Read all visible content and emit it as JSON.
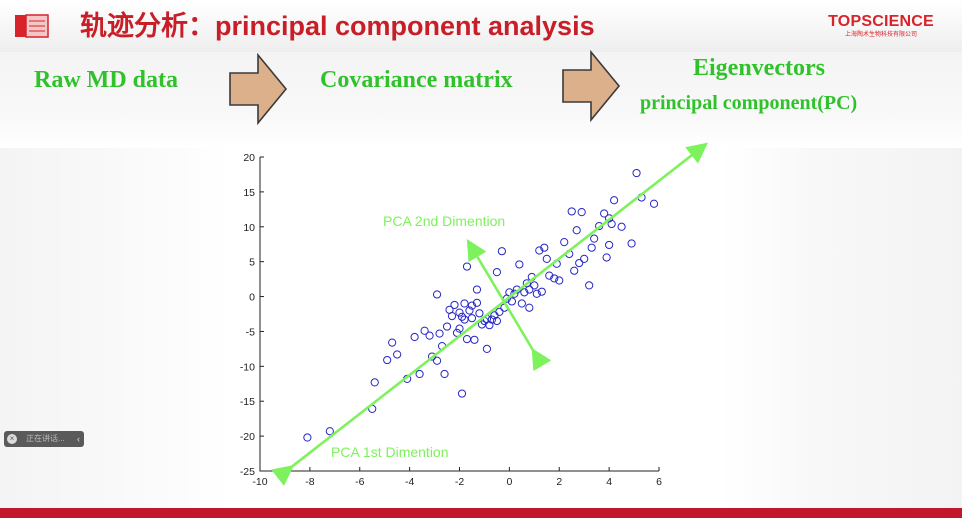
{
  "header": {
    "title": "轨迹分析：principal component analysis",
    "logo_word": "TOPSCIENCE",
    "logo_sub": "上海陶术生物科技有限公司"
  },
  "flow": {
    "step1": "Raw MD data",
    "step2": "Covariance matrix",
    "step3_line1": "Eigenvectors",
    "step3_line2": "principal component(PC)"
  },
  "minibar": {
    "text": "正在讲话..."
  },
  "colors": {
    "title_red": "#c81e28",
    "flow_green": "#2fc22a",
    "arrow_fill": "#ddb08c",
    "marker_blue": "#2626c8",
    "pca_arrow_green": "#7ef25c"
  },
  "chart_data": {
    "type": "scatter",
    "xlim": [
      -10,
      6
    ],
    "ylim": [
      -25,
      20
    ],
    "xticks": [
      -10,
      -8,
      -6,
      -4,
      -2,
      0,
      2,
      4,
      6
    ],
    "yticks": [
      -25,
      -20,
      -15,
      -10,
      -5,
      0,
      5,
      10,
      15,
      20
    ],
    "marker": "open-circle",
    "annotations": [
      {
        "text": "PCA 2nd Dimention",
        "from": [
          1,
          -8
        ],
        "to": [
          -1.6,
          7.6
        ]
      },
      {
        "text": "PCA 1st Dimention",
        "from": [
          -8.8,
          -24.6
        ],
        "to": [
          7.8,
          21.6
        ]
      }
    ],
    "points": [
      [
        -8.1,
        -20.2
      ],
      [
        -7.2,
        -19.3
      ],
      [
        -5.5,
        -16.1
      ],
      [
        -5.4,
        -12.3
      ],
      [
        -4.9,
        -9.1
      ],
      [
        -4.7,
        -6.6
      ],
      [
        -4.5,
        -8.3
      ],
      [
        -4.1,
        -11.8
      ],
      [
        -3.8,
        -5.8
      ],
      [
        -3.6,
        -11.1
      ],
      [
        -3.4,
        -4.9
      ],
      [
        -3.2,
        -5.6
      ],
      [
        -3.1,
        -8.6
      ],
      [
        -2.9,
        -9.2
      ],
      [
        -2.9,
        0.3
      ],
      [
        -2.8,
        -5.3
      ],
      [
        -2.7,
        -7.1
      ],
      [
        -2.6,
        -11.1
      ],
      [
        -2.5,
        -4.3
      ],
      [
        -2.4,
        -1.9
      ],
      [
        -2.3,
        -2.8
      ],
      [
        -2.2,
        -1.2
      ],
      [
        -2.1,
        -5.2
      ],
      [
        -2.0,
        -2.3
      ],
      [
        -2.0,
        -4.6
      ],
      [
        -1.9,
        -13.9
      ],
      [
        -1.9,
        -2.9
      ],
      [
        -1.8,
        -1.0
      ],
      [
        -1.8,
        -3.3
      ],
      [
        -1.7,
        -6.1
      ],
      [
        -1.7,
        4.3
      ],
      [
        -1.6,
        -2.0
      ],
      [
        -1.5,
        -3.1
      ],
      [
        -1.5,
        -1.3
      ],
      [
        -1.4,
        -6.2
      ],
      [
        -1.3,
        1.0
      ],
      [
        -1.3,
        -0.9
      ],
      [
        -1.2,
        -2.4
      ],
      [
        -1.1,
        -4.0
      ],
      [
        -1.0,
        -3.5
      ],
      [
        -0.9,
        -3.2
      ],
      [
        -0.9,
        -7.5
      ],
      [
        -0.8,
        -4.1
      ],
      [
        -0.7,
        -3.3
      ],
      [
        -0.6,
        -2.7
      ],
      [
        -0.5,
        -3.5
      ],
      [
        -0.5,
        3.5
      ],
      [
        -0.4,
        -2.2
      ],
      [
        -0.3,
        6.5
      ],
      [
        -0.2,
        -1.6
      ],
      [
        -0.1,
        -0.3
      ],
      [
        0,
        0.6
      ],
      [
        0.1,
        -0.7
      ],
      [
        0.2,
        0.4
      ],
      [
        0.3,
        1.0
      ],
      [
        0.4,
        4.6
      ],
      [
        0.5,
        -1.0
      ],
      [
        0.6,
        0.6
      ],
      [
        0.7,
        1.9
      ],
      [
        0.8,
        1.0
      ],
      [
        0.8,
        -1.6
      ],
      [
        0.9,
        2.8
      ],
      [
        1.0,
        1.6
      ],
      [
        1.1,
        0.4
      ],
      [
        1.2,
        6.6
      ],
      [
        1.3,
        0.7
      ],
      [
        1.4,
        7.0
      ],
      [
        1.5,
        5.4
      ],
      [
        1.6,
        3.0
      ],
      [
        1.8,
        2.6
      ],
      [
        1.9,
        4.7
      ],
      [
        2.0,
        2.3
      ],
      [
        2.2,
        7.8
      ],
      [
        2.4,
        6.1
      ],
      [
        2.5,
        12.2
      ],
      [
        2.6,
        3.7
      ],
      [
        2.7,
        9.5
      ],
      [
        2.8,
        4.8
      ],
      [
        2.9,
        12.1
      ],
      [
        3.0,
        5.4
      ],
      [
        3.2,
        1.6
      ],
      [
        3.3,
        7.0
      ],
      [
        3.4,
        8.3
      ],
      [
        3.6,
        10.1
      ],
      [
        3.8,
        11.9
      ],
      [
        3.9,
        5.6
      ],
      [
        4.0,
        11.2
      ],
      [
        4.0,
        7.4
      ],
      [
        4.2,
        13.8
      ],
      [
        4.5,
        10.0
      ],
      [
        4.9,
        7.6
      ],
      [
        5.1,
        17.7
      ],
      [
        5.3,
        14.2
      ],
      [
        5.8,
        13.3
      ],
      [
        4.1,
        10.4
      ]
    ]
  }
}
